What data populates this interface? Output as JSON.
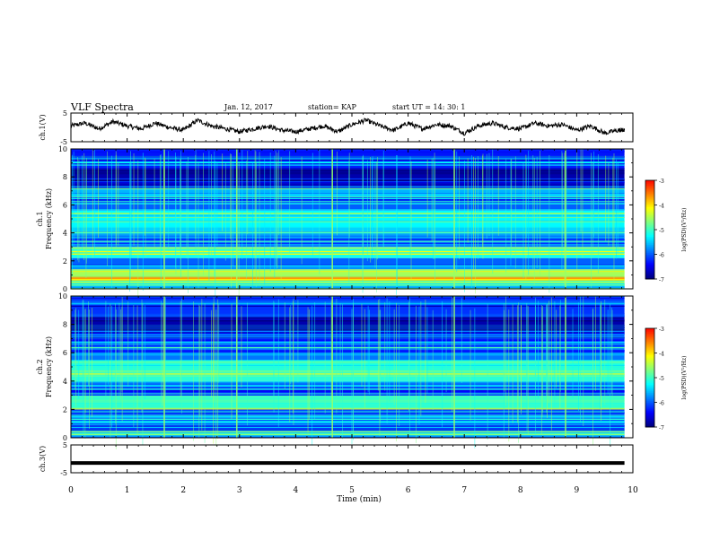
{
  "header": {
    "title": "VLF Spectra",
    "date": "Jan. 12, 2017",
    "station": "station= KAP",
    "start_ut": "start UT =  14: 30: 1"
  },
  "colors": {
    "waveform": "#000000",
    "axis": "#000000",
    "background": "#ffffff",
    "colormap": [
      "#00007f",
      "#0000ff",
      "#007fff",
      "#00ffff",
      "#7fff7f",
      "#ffff00",
      "#ff7f00",
      "#ff0000",
      "#ffffff"
    ]
  },
  "chart_data": [
    {
      "type": "line",
      "panel": "ch1-waveform",
      "ylabel": "ch.1(V)",
      "ylim": [
        -5,
        5
      ],
      "yticks": [
        "5",
        "-5"
      ],
      "xlim": [
        0,
        10
      ],
      "x": [
        0,
        0.25,
        0.5,
        0.75,
        1.0,
        1.25,
        1.5,
        1.75,
        2.0,
        2.25,
        2.5,
        2.75,
        3.0,
        3.25,
        3.5,
        3.75,
        4.0,
        4.25,
        4.5,
        4.75,
        5.0,
        5.25,
        5.5,
        5.75,
        6.0,
        6.25,
        6.5,
        6.75,
        7.0,
        7.25,
        7.5,
        7.75,
        8.0,
        8.25,
        8.5,
        8.75,
        9.0,
        9.25,
        9.5,
        9.75,
        9.85
      ],
      "y": [
        0.5,
        1.5,
        -0.5,
        2.0,
        0.5,
        -0.5,
        1.5,
        0.0,
        -1.0,
        2.5,
        0.5,
        -0.5,
        -1.5,
        -0.5,
        0.5,
        -1.0,
        -1.5,
        -0.5,
        0.5,
        -1.5,
        1.0,
        2.5,
        0.5,
        -1.0,
        1.5,
        -0.5,
        1.0,
        0.5,
        -2.0,
        0.5,
        1.5,
        0.0,
        -0.5,
        1.5,
        0.5,
        1.0,
        -1.0,
        0.5,
        -2.0,
        -1.0,
        -1.0
      ]
    },
    {
      "type": "heatmap",
      "panel": "ch1-spectrogram",
      "ylabel": "ch.1 Frequency (kHz)",
      "ylim": [
        0,
        10
      ],
      "yticks": [
        "0",
        "2",
        "4",
        "6",
        "8",
        "10"
      ],
      "xlim": [
        0,
        10
      ],
      "data_extent_min": 9.85,
      "colorbar": {
        "label": "log(PSD)(V²/Hz)",
        "range": [
          -7,
          -3
        ],
        "ticks": [
          "-3",
          "-4",
          "-5",
          "-6",
          "-7"
        ]
      },
      "bands_khz": [
        {
          "f0": 0.0,
          "f1": 0.4,
          "level": -5.5
        },
        {
          "f0": 0.4,
          "f1": 1.4,
          "level": -4.6
        },
        {
          "f0": 1.4,
          "f1": 2.2,
          "level": -6.0
        },
        {
          "f0": 2.2,
          "f1": 3.0,
          "level": -5.2
        },
        {
          "f0": 3.0,
          "f1": 4.0,
          "level": -5.9
        },
        {
          "f0": 4.0,
          "f1": 5.6,
          "level": -5.3
        },
        {
          "f0": 5.6,
          "f1": 6.6,
          "level": -6.0
        },
        {
          "f0": 6.6,
          "f1": 7.2,
          "level": -5.6
        },
        {
          "f0": 7.2,
          "f1": 8.6,
          "level": -6.8
        },
        {
          "f0": 8.6,
          "f1": 10.0,
          "level": -6.3
        }
      ],
      "impulses_min": [
        1.66,
        2.95,
        4.65,
        6.82,
        8.8
      ]
    },
    {
      "type": "heatmap",
      "panel": "ch2-spectrogram",
      "ylabel": "ch.2 Frequency (kHz)",
      "ylim": [
        0,
        10
      ],
      "yticks": [
        "0",
        "2",
        "4",
        "6",
        "8",
        "10"
      ],
      "xlim": [
        0,
        10
      ],
      "data_extent_min": 9.85,
      "colorbar": {
        "label": "log(PSD)(V²/Hz)",
        "range": [
          -7,
          -3
        ],
        "ticks": [
          "-3",
          "-4",
          "-5",
          "-6",
          "-7"
        ]
      },
      "bands_khz": [
        {
          "f0": 0.0,
          "f1": 0.5,
          "level": -5.6
        },
        {
          "f0": 0.5,
          "f1": 2.0,
          "level": -6.1
        },
        {
          "f0": 2.0,
          "f1": 3.0,
          "level": -5.0
        },
        {
          "f0": 3.0,
          "f1": 4.0,
          "level": -6.0
        },
        {
          "f0": 4.0,
          "f1": 5.4,
          "level": -5.1
        },
        {
          "f0": 5.4,
          "f1": 6.8,
          "level": -5.9
        },
        {
          "f0": 6.8,
          "f1": 7.6,
          "level": -6.4
        },
        {
          "f0": 7.6,
          "f1": 8.6,
          "level": -6.8
        },
        {
          "f0": 8.6,
          "f1": 10.0,
          "level": -6.2
        }
      ],
      "impulses_min": [
        1.66,
        2.95,
        4.65,
        6.82,
        8.8
      ]
    },
    {
      "type": "line",
      "panel": "ch3-waveform",
      "ylabel": "ch.3(V)",
      "ylim": [
        -5,
        5
      ],
      "yticks": [
        "5",
        "-5"
      ],
      "xlim": [
        0,
        10
      ],
      "x": [
        0,
        9.85
      ],
      "y": [
        -1.5,
        -1.5
      ]
    }
  ],
  "xaxis": {
    "label": "Time (min)",
    "ticks": [
      "0",
      "1",
      "2",
      "3",
      "4",
      "5",
      "6",
      "7",
      "8",
      "9",
      "10"
    ]
  }
}
